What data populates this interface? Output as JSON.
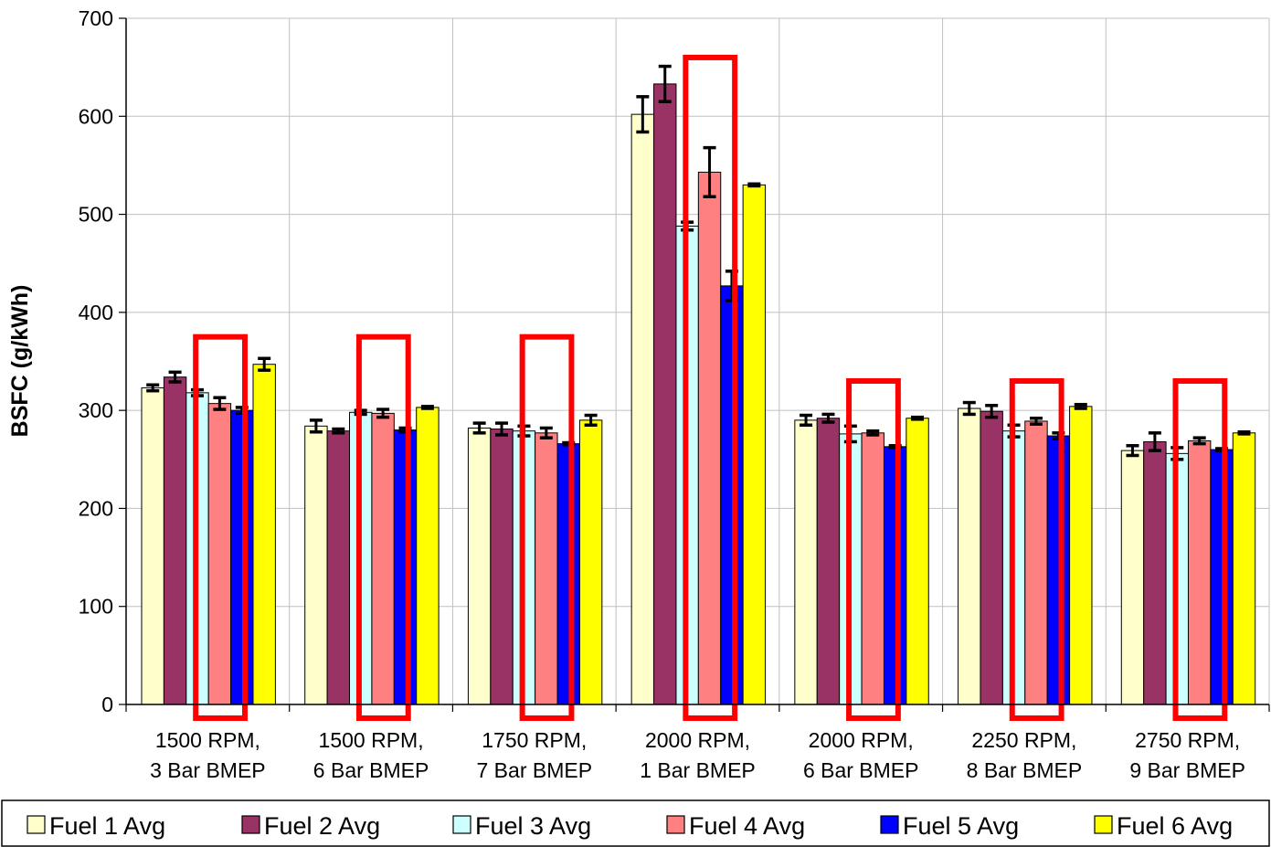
{
  "chart_data": {
    "type": "bar",
    "ylabel": "BSFC (g/kWh)",
    "xlabel": "",
    "ylim": [
      0,
      700
    ],
    "yticks": [
      0,
      100,
      200,
      300,
      400,
      500,
      600,
      700
    ],
    "grid": true,
    "legend_position": "bottom",
    "categories": [
      [
        "1500 RPM,",
        "3 Bar BMEP"
      ],
      [
        "1500 RPM,",
        "6 Bar BMEP"
      ],
      [
        "1750 RPM,",
        "7 Bar BMEP"
      ],
      [
        "2000 RPM,",
        "1 Bar BMEP"
      ],
      [
        "2000 RPM,",
        "6 Bar BMEP"
      ],
      [
        "2250 RPM,",
        "8 Bar BMEP"
      ],
      [
        "2750 RPM,",
        "9 Bar BMEP"
      ]
    ],
    "series": [
      {
        "name": "Fuel 1 Avg",
        "color": "#FFFFCC",
        "values": [
          323,
          284,
          282,
          602,
          290,
          302,
          259
        ],
        "errors": [
          3,
          6,
          5,
          18,
          5,
          6,
          5
        ]
      },
      {
        "name": "Fuel 2 Avg",
        "color": "#993366",
        "values": [
          334,
          279,
          281,
          633,
          292,
          299,
          268
        ],
        "errors": [
          5,
          2,
          6,
          18,
          4,
          6,
          9
        ]
      },
      {
        "name": "Fuel 3 Avg",
        "color": "#CCFFFF",
        "values": [
          318,
          298,
          279,
          488,
          276,
          279,
          256
        ],
        "errors": [
          3,
          2,
          5,
          4,
          8,
          6,
          6
        ]
      },
      {
        "name": "Fuel 4 Avg",
        "color": "#FF8080",
        "values": [
          307,
          297,
          277,
          543,
          277,
          289,
          269
        ],
        "errors": [
          6,
          4,
          5,
          25,
          2,
          3,
          3
        ]
      },
      {
        "name": "Fuel 5 Avg",
        "color": "#0000FF",
        "values": [
          300,
          280,
          266,
          427,
          263,
          274,
          260
        ],
        "errors": [
          3,
          2,
          1,
          15,
          1,
          3,
          1
        ]
      },
      {
        "name": "Fuel 6 Avg",
        "color": "#FFFF00",
        "values": [
          347,
          303,
          290,
          530,
          292,
          304,
          277
        ],
        "errors": [
          6,
          1,
          5,
          1,
          1,
          2,
          1
        ]
      }
    ],
    "annotations": {
      "type": "highlight-rectangles",
      "color": "#FF0000",
      "note_series": [
        "Fuel 4 Avg",
        "Fuel 5 Avg"
      ],
      "boxes_top_values": [
        375,
        375,
        375,
        660,
        330,
        330,
        330
      ]
    }
  }
}
